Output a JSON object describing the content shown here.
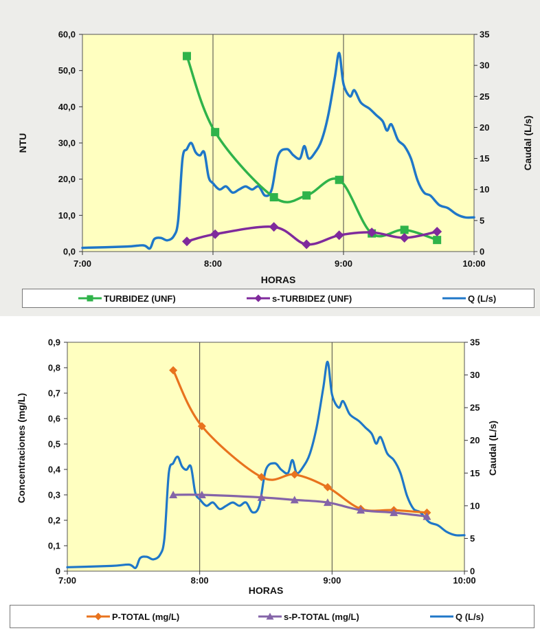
{
  "chart_data": [
    {
      "type": "line",
      "ylabel": "NTU",
      "y2label": "Caudal (L/s)",
      "xlabel": "HORAS",
      "x_ticks": [
        "7:00",
        "8:00",
        "9:00",
        "10:00"
      ],
      "ylim": [
        0,
        60
      ],
      "y_ticks": [
        "0,0",
        "10,0",
        "20,0",
        "30,0",
        "40,0",
        "50,0",
        "60,0"
      ],
      "y2lim": [
        0,
        35
      ],
      "y2_ticks": [
        "0",
        "5",
        "10",
        "15",
        "20",
        "25",
        "30",
        "35"
      ],
      "grid": "vertical lines at each hour",
      "plot_background": "#ffffc0",
      "legend_position": "bottom",
      "series": [
        {
          "name": "TURBIDEZ (UNF)",
          "axis": "left",
          "color": "#2fb34a",
          "marker": "square",
          "points": [
            [
              "7:48",
              54
            ],
            [
              "8:01",
              33
            ],
            [
              "8:28",
              15
            ],
            [
              "8:43",
              15.5
            ],
            [
              "8:58",
              19.8
            ],
            [
              "9:13",
              5
            ],
            [
              "9:28",
              6
            ],
            [
              "9:43",
              3.2
            ]
          ]
        },
        {
          "name": "s-TURBIDEZ (UNF)",
          "axis": "left",
          "color": "#7f2a9c",
          "marker": "diamond",
          "points": [
            [
              "7:48",
              2.8
            ],
            [
              "8:01",
              4.8
            ],
            [
              "8:28",
              6.8
            ],
            [
              "8:43",
              2
            ],
            [
              "8:58",
              4.5
            ],
            [
              "9:13",
              5.3
            ],
            [
              "9:28",
              3.8
            ],
            [
              "9:43",
              5.5
            ]
          ]
        },
        {
          "name": "Q (L/s)",
          "axis": "right",
          "color": "#1f77c8",
          "marker": "none",
          "points": [
            [
              "7:00",
              0.6
            ],
            [
              "7:20",
              0.8
            ],
            [
              "7:28",
              1.0
            ],
            [
              "7:31",
              0.5
            ],
            [
              "7:33",
              2.0
            ],
            [
              "7:36",
              2.2
            ],
            [
              "7:39",
              1.8
            ],
            [
              "7:42",
              2.5
            ],
            [
              "7:44",
              5.0
            ],
            [
              "7:46",
              15.0
            ],
            [
              "7:48",
              16.5
            ],
            [
              "7:50",
              17.5
            ],
            [
              "7:52",
              16.0
            ],
            [
              "7:54",
              15.5
            ],
            [
              "7:56",
              16.0
            ],
            [
              "7:58",
              12.0
            ],
            [
              "8:00",
              11.0
            ],
            [
              "8:03",
              10.0
            ],
            [
              "8:06",
              10.5
            ],
            [
              "8:09",
              9.5
            ],
            [
              "8:12",
              10.0
            ],
            [
              "8:15",
              10.5
            ],
            [
              "8:18",
              10.0
            ],
            [
              "8:21",
              10.5
            ],
            [
              "8:24",
              9.0
            ],
            [
              "8:27",
              10.0
            ],
            [
              "8:30",
              15.5
            ],
            [
              "8:34",
              16.5
            ],
            [
              "8:37",
              15.5
            ],
            [
              "8:40",
              15.0
            ],
            [
              "8:42",
              17.0
            ],
            [
              "8:44",
              15.0
            ],
            [
              "8:47",
              16.0
            ],
            [
              "8:50",
              18.0
            ],
            [
              "8:53",
              22.0
            ],
            [
              "8:56",
              28.0
            ],
            [
              "8:58",
              32.0
            ],
            [
              "9:00",
              27.0
            ],
            [
              "9:03",
              25.0
            ],
            [
              "9:05",
              26.0
            ],
            [
              "9:08",
              24.0
            ],
            [
              "9:12",
              23.0
            ],
            [
              "9:15",
              22.0
            ],
            [
              "9:18",
              21.0
            ],
            [
              "9:20",
              19.5
            ],
            [
              "9:22",
              20.5
            ],
            [
              "9:25",
              18.0
            ],
            [
              "9:28",
              17.0
            ],
            [
              "9:31",
              15.0
            ],
            [
              "9:34",
              11.5
            ],
            [
              "9:37",
              9.5
            ],
            [
              "9:40",
              9.0
            ],
            [
              "9:44",
              7.5
            ],
            [
              "9:48",
              7.0
            ],
            [
              "9:52",
              6.0
            ],
            [
              "9:56",
              5.5
            ],
            [
              "10:00",
              5.5
            ]
          ]
        }
      ]
    },
    {
      "type": "line",
      "ylabel": "Concentraciones (mg/L)",
      "y2label": "Caudal (L/s)",
      "xlabel": "HORAS",
      "x_ticks": [
        "7:00",
        "8:00",
        "9:00",
        "10:00"
      ],
      "ylim": [
        0,
        0.9
      ],
      "y_ticks": [
        "0",
        "0,1",
        "0,2",
        "0,3",
        "0,4",
        "0,5",
        "0,6",
        "0,7",
        "0,8",
        "0,9"
      ],
      "y2lim": [
        0,
        35
      ],
      "y2_ticks": [
        "0",
        "5",
        "10",
        "15",
        "20",
        "25",
        "30",
        "35"
      ],
      "grid": "vertical lines at each hour",
      "plot_background": "#ffffc0",
      "legend_position": "bottom",
      "series": [
        {
          "name": "P-TOTAL (mg/L)",
          "axis": "left",
          "color": "#e8731e",
          "marker": "diamond",
          "points": [
            [
              "7:48",
              0.79
            ],
            [
              "8:01",
              0.57
            ],
            [
              "8:28",
              0.37
            ],
            [
              "8:43",
              0.38
            ],
            [
              "8:58",
              0.33
            ],
            [
              "9:13",
              0.245
            ],
            [
              "9:28",
              0.24
            ],
            [
              "9:43",
              0.23
            ]
          ]
        },
        {
          "name": "s-P-TOTAL (mg/L)",
          "axis": "left",
          "color": "#8464a8",
          "marker": "triangle",
          "points": [
            [
              "7:48",
              0.3
            ],
            [
              "8:01",
              0.3
            ],
            [
              "8:28",
              0.29
            ],
            [
              "8:43",
              0.28
            ],
            [
              "8:58",
              0.27
            ],
            [
              "9:13",
              0.24
            ],
            [
              "9:28",
              0.23
            ],
            [
              "9:43",
              0.215
            ]
          ]
        },
        {
          "name": "Q (L/s)",
          "axis": "right",
          "color": "#1f77c8",
          "marker": "none",
          "points": [
            [
              "7:00",
              0.6
            ],
            [
              "7:20",
              0.8
            ],
            [
              "7:28",
              1.0
            ],
            [
              "7:31",
              0.5
            ],
            [
              "7:33",
              2.0
            ],
            [
              "7:36",
              2.2
            ],
            [
              "7:39",
              1.8
            ],
            [
              "7:42",
              2.5
            ],
            [
              "7:44",
              5.0
            ],
            [
              "7:46",
              15.0
            ],
            [
              "7:48",
              16.5
            ],
            [
              "7:50",
              17.5
            ],
            [
              "7:52",
              16.0
            ],
            [
              "7:54",
              15.5
            ],
            [
              "7:56",
              16.0
            ],
            [
              "7:58",
              12.0
            ],
            [
              "8:00",
              11.0
            ],
            [
              "8:03",
              10.0
            ],
            [
              "8:06",
              10.5
            ],
            [
              "8:09",
              9.5
            ],
            [
              "8:12",
              10.0
            ],
            [
              "8:15",
              10.5
            ],
            [
              "8:18",
              10.0
            ],
            [
              "8:21",
              10.5
            ],
            [
              "8:24",
              9.0
            ],
            [
              "8:27",
              10.0
            ],
            [
              "8:30",
              15.5
            ],
            [
              "8:34",
              16.5
            ],
            [
              "8:37",
              15.5
            ],
            [
              "8:40",
              15.0
            ],
            [
              "8:42",
              17.0
            ],
            [
              "8:44",
              15.0
            ],
            [
              "8:47",
              16.0
            ],
            [
              "8:50",
              18.0
            ],
            [
              "8:53",
              22.0
            ],
            [
              "8:56",
              28.0
            ],
            [
              "8:58",
              32.0
            ],
            [
              "9:00",
              27.0
            ],
            [
              "9:03",
              25.0
            ],
            [
              "9:05",
              26.0
            ],
            [
              "9:08",
              24.0
            ],
            [
              "9:12",
              23.0
            ],
            [
              "9:15",
              22.0
            ],
            [
              "9:18",
              21.0
            ],
            [
              "9:20",
              19.5
            ],
            [
              "9:22",
              20.5
            ],
            [
              "9:25",
              18.0
            ],
            [
              "9:28",
              17.0
            ],
            [
              "9:31",
              15.0
            ],
            [
              "9:34",
              11.5
            ],
            [
              "9:37",
              9.5
            ],
            [
              "9:40",
              9.0
            ],
            [
              "9:44",
              7.5
            ],
            [
              "9:48",
              7.0
            ],
            [
              "9:52",
              6.0
            ],
            [
              "9:56",
              5.5
            ],
            [
              "10:00",
              5.5
            ]
          ]
        }
      ]
    }
  ]
}
